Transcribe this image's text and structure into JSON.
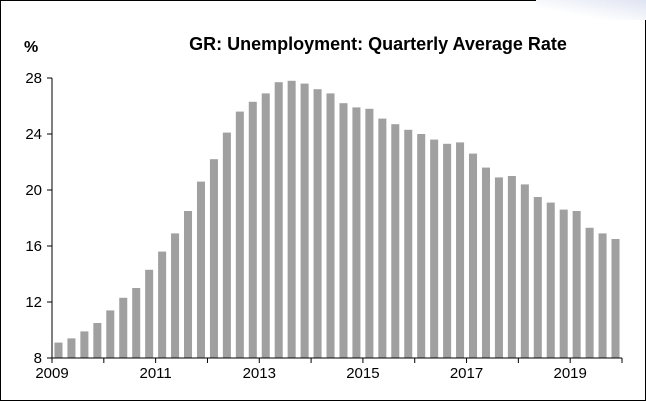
{
  "chart_data": {
    "type": "bar",
    "title": "GR: Unemployment: Quarterly Average Rate",
    "ylabel": "%",
    "xlabel": "",
    "ylim": [
      8,
      28
    ],
    "yticks": [
      8,
      12,
      16,
      20,
      24,
      28
    ],
    "xtick_labels": [
      "2009",
      "2011",
      "2013",
      "2015",
      "2017",
      "2019"
    ],
    "grid": false,
    "bar_color": "#a0a0a0",
    "categories": [
      "2009 Q1",
      "2009 Q2",
      "2009 Q3",
      "2009 Q4",
      "2010 Q1",
      "2010 Q2",
      "2010 Q3",
      "2010 Q4",
      "2011 Q1",
      "2011 Q2",
      "2011 Q3",
      "2011 Q4",
      "2012 Q1",
      "2012 Q2",
      "2012 Q3",
      "2012 Q4",
      "2013 Q1",
      "2013 Q2",
      "2013 Q3",
      "2013 Q4",
      "2014 Q1",
      "2014 Q2",
      "2014 Q3",
      "2014 Q4",
      "2015 Q1",
      "2015 Q2",
      "2015 Q3",
      "2015 Q4",
      "2016 Q1",
      "2016 Q2",
      "2016 Q3",
      "2016 Q4",
      "2017 Q1",
      "2017 Q2",
      "2017 Q3",
      "2017 Q4",
      "2018 Q1",
      "2018 Q2",
      "2018 Q3",
      "2018 Q4",
      "2019 Q1",
      "2019 Q2",
      "2019 Q3",
      "2019 Q4"
    ],
    "values": [
      9.1,
      9.4,
      9.9,
      10.5,
      11.4,
      12.3,
      13.0,
      14.3,
      15.6,
      16.9,
      18.5,
      20.6,
      22.2,
      24.1,
      25.6,
      26.3,
      26.9,
      27.7,
      27.8,
      27.6,
      27.2,
      26.9,
      26.2,
      25.9,
      25.8,
      25.1,
      24.7,
      24.3,
      24.0,
      23.6,
      23.3,
      23.4,
      22.6,
      21.6,
      20.9,
      21.0,
      20.4,
      19.5,
      19.1,
      18.6,
      18.5,
      17.3,
      16.9,
      16.5
    ]
  }
}
